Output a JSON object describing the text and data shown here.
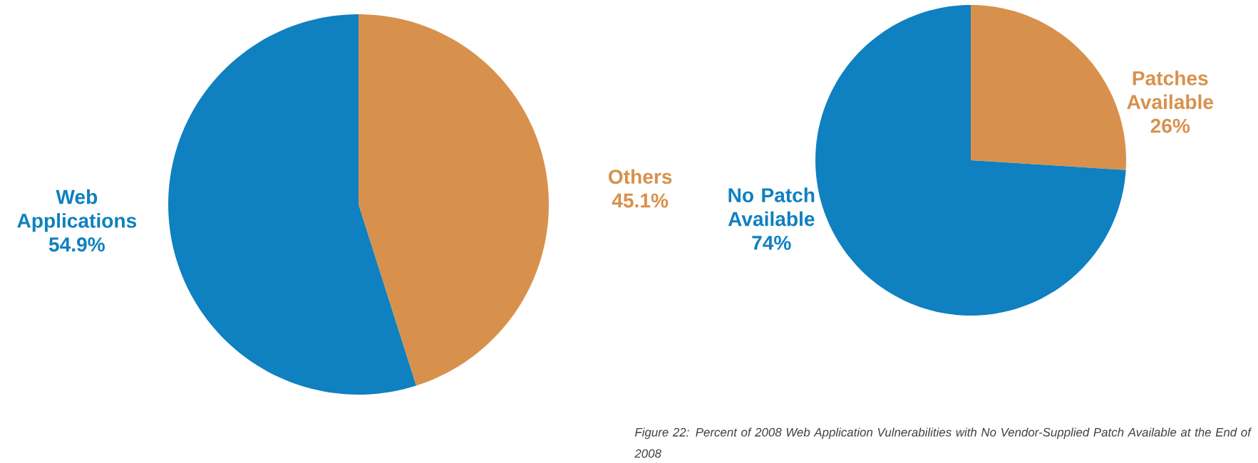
{
  "chart_data": [
    {
      "type": "pie",
      "categories": [
        "Others",
        "Web Applications"
      ],
      "values": [
        45.1,
        54.9
      ],
      "value_labels": [
        "45.1%",
        "54.9%"
      ],
      "colors": [
        "#d8914c",
        "#0f80c0"
      ]
    },
    {
      "type": "pie",
      "categories": [
        "Patches Available",
        "No Patch Available"
      ],
      "values": [
        26,
        74
      ],
      "value_labels": [
        "26%",
        "74%"
      ],
      "colors": [
        "#d8914c",
        "#0f80c0"
      ],
      "annotations": [
        "Figure 22: Percent of 2008 Web Application Vulnerabilities with No Vendor-Supplied Patch Available at the End of 2008"
      ]
    }
  ]
}
